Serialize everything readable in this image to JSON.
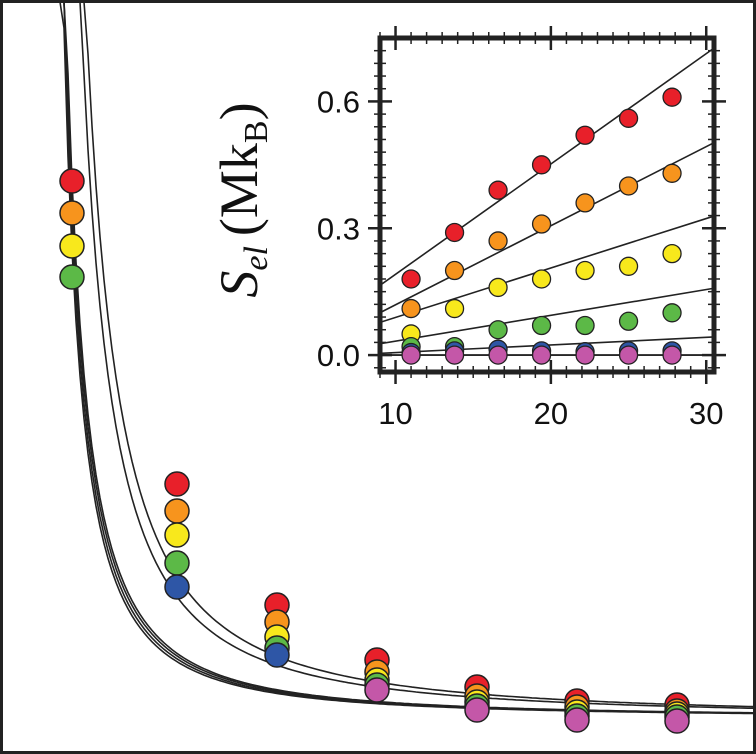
{
  "chart_data": [
    {
      "type": "scatter",
      "id": "main",
      "series": [
        {
          "color": "#e8202a",
          "points": [
            [
              0.65,
              181
            ],
            [
              1.7,
              484
            ],
            [
              2.7,
              605
            ],
            [
              3.7,
              660
            ],
            [
              4.7,
              687
            ],
            [
              5.7,
              701
            ],
            [
              6.7,
              705
            ]
          ]
        },
        {
          "color": "#f7941d",
          "points": [
            [
              0.65,
              213
            ],
            [
              1.7,
              511
            ],
            [
              2.7,
              622
            ],
            [
              3.7,
              672
            ],
            [
              4.7,
              696
            ],
            [
              5.7,
              707
            ],
            [
              6.7,
              711
            ]
          ]
        },
        {
          "color": "#f8e81c",
          "points": [
            [
              0.65,
              246
            ],
            [
              1.7,
              535
            ],
            [
              2.7,
              637
            ],
            [
              3.7,
              680
            ],
            [
              4.7,
              702
            ],
            [
              5.7,
              712
            ],
            [
              6.7,
              714
            ]
          ]
        },
        {
          "color": "#5cb947",
          "points": [
            [
              0.65,
              277
            ],
            [
              1.7,
              563
            ],
            [
              2.7,
              648
            ],
            [
              3.7,
              685
            ],
            [
              4.7,
              706
            ],
            [
              5.7,
              716
            ],
            [
              6.7,
              717
            ]
          ]
        },
        {
          "color": "#2e56a6",
          "points": [
            [
              1.7,
              587
            ],
            [
              2.7,
              655
            ]
          ]
        },
        {
          "color": "#c457a8",
          "points": [
            [
              3.7,
              690
            ],
            [
              4.7,
              710
            ],
            [
              5.7,
              720
            ],
            [
              6.7,
              721
            ]
          ]
        }
      ]
    },
    {
      "type": "scatter",
      "id": "inset",
      "ylabel": "S",
      "ylabel_sub": "el",
      "ylabel_unit_open": "(Mk",
      "ylabel_unit_sub": "B",
      "ylabel_unit_close": ")",
      "xlim": [
        9,
        30.5
      ],
      "ylim": [
        -0.04,
        0.75
      ],
      "x_ticks": [
        10,
        20,
        30
      ],
      "x_tick_labels": [
        "10",
        "20",
        "30"
      ],
      "y_ticks": [
        0.0,
        0.3,
        0.6
      ],
      "y_tick_labels": [
        "0.0",
        "0.3",
        "0.6"
      ],
      "series": [
        {
          "color": "#e8202a",
          "x": [
            11,
            13.8,
            16.6,
            19.4,
            22.2,
            25,
            27.8
          ],
          "y": [
            0.18,
            0.29,
            0.39,
            0.45,
            0.52,
            0.56,
            0.61
          ],
          "fit_slope": 0.0261,
          "fit_intercept": -0.07
        },
        {
          "color": "#f7941d",
          "x": [
            11,
            13.8,
            16.6,
            19.4,
            22.2,
            25,
            27.8
          ],
          "y": [
            0.11,
            0.2,
            0.27,
            0.31,
            0.36,
            0.4,
            0.43
          ],
          "fit_slope": 0.0187,
          "fit_intercept": -0.068
        },
        {
          "color": "#f8e81c",
          "x": [
            11,
            13.8,
            16.6,
            19.4,
            22.2,
            25,
            27.8
          ],
          "y": [
            0.05,
            0.11,
            0.16,
            0.18,
            0.2,
            0.21,
            0.24
          ],
          "fit_slope": 0.0117,
          "fit_intercept": -0.028
        },
        {
          "color": "#5cb947",
          "x": [
            11,
            13.8,
            16.6,
            19.4,
            22.2,
            25,
            27.8
          ],
          "y": [
            0.02,
            0.02,
            0.06,
            0.07,
            0.07,
            0.08,
            0.1
          ],
          "fit_slope": 0.0061,
          "fit_intercept": -0.028
        },
        {
          "color": "#2e56a6",
          "x": [
            11,
            13.8,
            16.6,
            19.4,
            22.2,
            25,
            27.8
          ],
          "y": [
            0.006,
            0.01,
            0.014,
            0.01,
            0.008,
            0.01,
            0.01
          ],
          "fit_slope": 0.0018,
          "fit_intercept": -0.012
        },
        {
          "color": "#c457a8",
          "x": [
            11,
            13.8,
            16.6,
            19.4,
            22.2,
            25,
            27.8
          ],
          "y": [
            0.0,
            0.0,
            0.0,
            0.0,
            0.0,
            0.0,
            0.0
          ],
          "fit_slope": 0,
          "fit_intercept": 0
        }
      ]
    }
  ]
}
